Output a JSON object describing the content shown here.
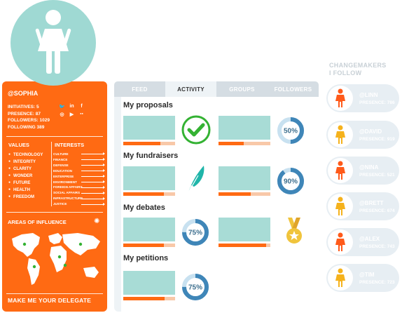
{
  "profile": {
    "handle": "@SOPHIA",
    "stats": [
      {
        "label": "INITIATIVES: 5"
      },
      {
        "label": "PRESENCE: 87"
      },
      {
        "label": "FOLLOWERS: 1029"
      },
      {
        "label": "FOLLOWING 389"
      }
    ],
    "social_icons": [
      {
        "name": "twitter-icon",
        "glyph": "🐦"
      },
      {
        "name": "linkedin-icon",
        "glyph": "in"
      },
      {
        "name": "facebook-icon",
        "glyph": "f"
      },
      {
        "name": "instagram-icon",
        "glyph": "◎"
      },
      {
        "name": "youtube-icon",
        "glyph": "▶"
      },
      {
        "name": "flickr-icon",
        "glyph": "●●"
      }
    ],
    "values_title": "VALUES",
    "values": [
      "TECHNOLOGY",
      "INTEGRITY",
      "CLARITY",
      "WONDER",
      "FUTURE",
      "HEALTH",
      "FREEDOM"
    ],
    "interests_title": "INTERESTS",
    "interests": [
      "CULTURE",
      "FINANCE",
      "DEFENSE",
      "EDUCATION",
      "ENTERPRISE",
      "ENVIRONMENT",
      "FOREIGN AFFAIRS",
      "SOCIAL AFFAIRS",
      "INFRASTRUCTURE",
      "JUSTICE"
    ],
    "areas_title": "AREAS OF INFLUENCE",
    "delegate_label": "MAKE ME YOUR DELEGATE",
    "accent": "#ff6a13"
  },
  "activity": {
    "tabs": [
      {
        "label": "FEED",
        "active": false
      },
      {
        "label": "ACTIVITY",
        "active": true
      },
      {
        "label": "GROUPS",
        "active": false
      },
      {
        "label": "FOLLOWERS",
        "active": false
      }
    ],
    "sections": [
      {
        "title": "My proposals"
      },
      {
        "title": "My fundraisers"
      },
      {
        "title": "My debates"
      },
      {
        "title": "My petitions"
      }
    ],
    "cards": [
      {
        "progress": 0.72
      },
      {
        "progress": 0.48
      },
      {
        "progress": 0.78
      },
      {
        "progress": 0.62
      },
      {
        "progress": 0.78
      },
      {
        "progress": 0.92
      },
      {
        "progress": 0.8
      }
    ],
    "rings": [
      {
        "label": "50%",
        "value": 0.5
      },
      {
        "label": "90%",
        "value": 0.9
      },
      {
        "label": "75%",
        "value": 0.75
      },
      {
        "label": "75%",
        "value": 0.75
      }
    ],
    "icons": [
      "checkmark-icon",
      "feather-icon",
      "medal-icon"
    ]
  },
  "following": {
    "title_line1": "CHANGEMAKERS",
    "title_line2": "I FOLLOW",
    "people": [
      {
        "handle": "@LINN",
        "presence": "PRESENCE: 786",
        "color": "#ff5a1a"
      },
      {
        "handle": "@DAVID",
        "presence": "PRESENCE: 919",
        "color": "#f5b21c"
      },
      {
        "handle": "@NINA",
        "presence": "PRESENCE: 521",
        "color": "#ff5a1a"
      },
      {
        "handle": "@BRETT",
        "presence": "PRESENCE: 674",
        "color": "#f5b21c"
      },
      {
        "handle": "@ALEX",
        "presence": "PRESENCE: 743",
        "color": "#ff5a1a"
      },
      {
        "handle": "@TIM",
        "presence": "PRESENCE: 723",
        "color": "#f5b21c"
      }
    ]
  }
}
